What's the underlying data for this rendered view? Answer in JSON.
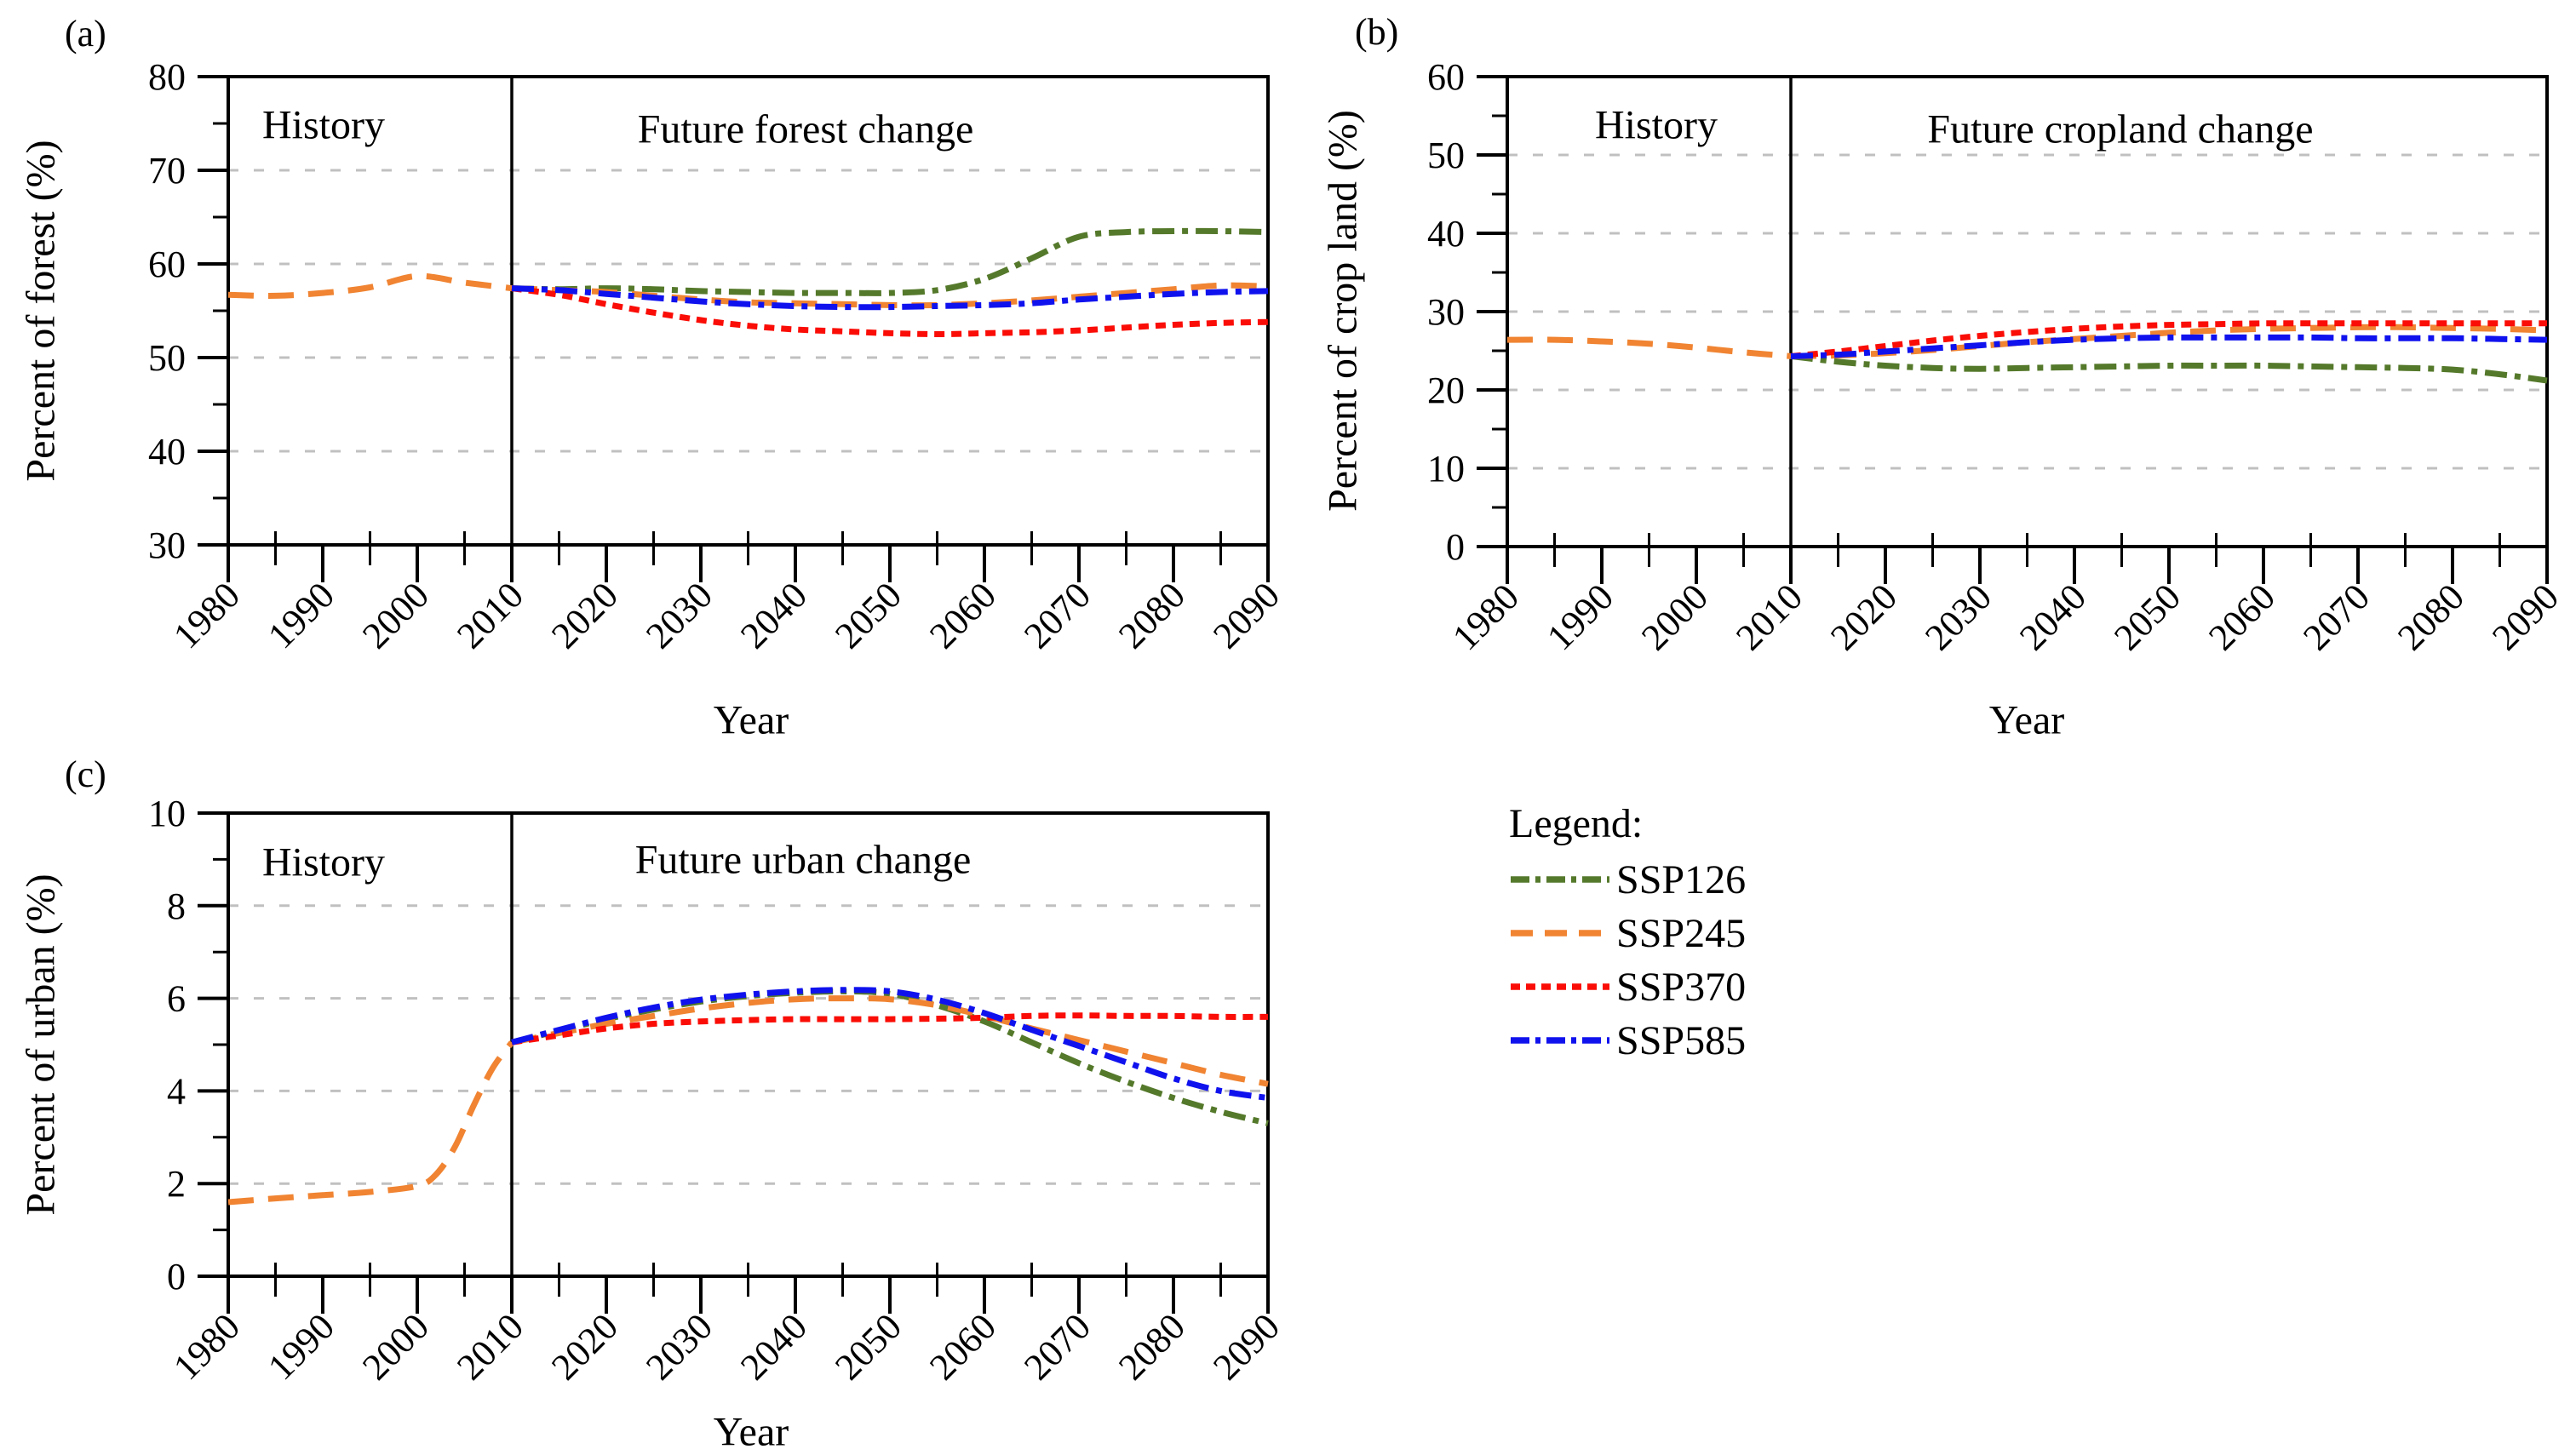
{
  "figure": {
    "background": "#ffffff",
    "description_visible_text_only": true
  },
  "colors": {
    "SSP126": "#55792B",
    "SSP245": "#F08432",
    "SSP370": "#FA0D06",
    "SSP585": "#1012EE",
    "grid": "#C0C0C0",
    "axis": "#000000",
    "text": "#000000"
  },
  "dashes": {
    "dashdot": "26 9 7 9",
    "dashed": "30 17",
    "shortdash": "12 8",
    "grid": "12 18",
    "legend_dashdot": "22 7 6 7",
    "legend_dashed": "26 14",
    "legend_shortdash": "11 7"
  },
  "legend": {
    "title": "Legend:",
    "items": [
      {
        "label": "SSP126",
        "color": "SSP126",
        "dash": "legend_dashdot"
      },
      {
        "label": "SSP245",
        "color": "SSP245",
        "dash": "legend_dashed"
      },
      {
        "label": "SSP370",
        "color": "SSP370",
        "dash": "legend_shortdash"
      },
      {
        "label": "SSP585",
        "color": "SSP585",
        "dash": "legend_dashdot"
      }
    ]
  },
  "chart_data": [
    {
      "id": "forest",
      "type": "line",
      "panel_label": "(a)",
      "history_label": "History",
      "future_label": "Future forest change",
      "xlabel": "Year",
      "ylabel": "Percent of forest (%)",
      "xlim": [
        1980,
        2090
      ],
      "ylim": [
        30,
        80
      ],
      "xticks": [
        1980,
        1990,
        2000,
        2010,
        2020,
        2030,
        2040,
        2050,
        2060,
        2070,
        2080,
        2090
      ],
      "xminor": [
        1985,
        1995,
        2005,
        2015,
        2025,
        2035,
        2045,
        2055,
        2065,
        2075,
        2085
      ],
      "yticks": [
        30,
        40,
        50,
        60,
        70,
        80
      ],
      "yminor": [
        35,
        45,
        55,
        65,
        75
      ],
      "grid_values": [
        40,
        50,
        60,
        70
      ],
      "grid": true,
      "divider_year": 2010,
      "series": [
        {
          "name": "History",
          "color": "SSP245",
          "dash": "dashed",
          "x": [
            1980,
            1985,
            1990,
            1995,
            2000,
            2005,
            2010
          ],
          "y": [
            56.7,
            56.6,
            56.9,
            57.5,
            58.7,
            58.0,
            57.4
          ]
        },
        {
          "name": "SSP126",
          "color": "SSP126",
          "dash": "dashdot",
          "x": [
            2010,
            2015,
            2020,
            2025,
            2030,
            2035,
            2040,
            2045,
            2050,
            2055,
            2060,
            2065,
            2070,
            2075,
            2080,
            2085,
            2090
          ],
          "y": [
            57.4,
            57.3,
            57.4,
            57.3,
            57.1,
            57.0,
            56.9,
            56.9,
            56.9,
            57.2,
            58.4,
            60.6,
            62.9,
            63.4,
            63.5,
            63.5,
            63.4
          ]
        },
        {
          "name": "SSP245",
          "color": "SSP245",
          "dash": "dashed",
          "x": [
            2010,
            2015,
            2020,
            2025,
            2030,
            2035,
            2040,
            2045,
            2050,
            2055,
            2060,
            2065,
            2070,
            2075,
            2080,
            2085,
            2090
          ],
          "y": [
            57.4,
            57.2,
            57.0,
            56.6,
            56.2,
            55.9,
            55.8,
            55.7,
            55.6,
            55.6,
            55.8,
            56.1,
            56.5,
            56.9,
            57.3,
            57.7,
            57.6
          ]
        },
        {
          "name": "SSP370",
          "color": "SSP370",
          "dash": "shortdash",
          "x": [
            2010,
            2015,
            2020,
            2025,
            2030,
            2035,
            2040,
            2045,
            2050,
            2055,
            2060,
            2065,
            2070,
            2075,
            2080,
            2085,
            2090
          ],
          "y": [
            57.4,
            56.7,
            55.7,
            54.8,
            54.0,
            53.4,
            53.0,
            52.8,
            52.6,
            52.5,
            52.6,
            52.7,
            52.9,
            53.2,
            53.5,
            53.7,
            53.8
          ]
        },
        {
          "name": "SSP585",
          "color": "SSP585",
          "dash": "dashdot",
          "x": [
            2010,
            2015,
            2020,
            2025,
            2030,
            2035,
            2040,
            2045,
            2050,
            2055,
            2060,
            2065,
            2070,
            2075,
            2080,
            2085,
            2090
          ],
          "y": [
            57.4,
            57.2,
            56.8,
            56.4,
            56.0,
            55.7,
            55.5,
            55.4,
            55.4,
            55.5,
            55.6,
            55.8,
            56.2,
            56.5,
            56.8,
            57.0,
            57.1
          ]
        }
      ]
    },
    {
      "id": "cropland",
      "type": "line",
      "panel_label": "(b)",
      "history_label": "History",
      "future_label": "Future cropland change",
      "xlabel": "Year",
      "ylabel": "Percent of crop land (%)",
      "xlim": [
        1980,
        2090
      ],
      "ylim": [
        0,
        60
      ],
      "xticks": [
        1980,
        1990,
        2000,
        2010,
        2020,
        2030,
        2040,
        2050,
        2060,
        2070,
        2080,
        2090
      ],
      "xminor": [
        1985,
        1995,
        2005,
        2015,
        2025,
        2035,
        2045,
        2055,
        2065,
        2075,
        2085
      ],
      "yticks": [
        0,
        10,
        20,
        30,
        40,
        50,
        60
      ],
      "yminor": [
        5,
        15,
        25,
        35,
        45,
        55
      ],
      "grid_values": [
        10,
        20,
        30,
        40,
        50
      ],
      "grid": true,
      "divider_year": 2010,
      "series": [
        {
          "name": "History",
          "color": "SSP245",
          "dash": "dashed",
          "x": [
            1980,
            1985,
            1990,
            1995,
            2000,
            2005,
            2010
          ],
          "y": [
            26.4,
            26.4,
            26.2,
            25.9,
            25.4,
            24.8,
            24.3
          ]
        },
        {
          "name": "SSP126",
          "color": "SSP126",
          "dash": "dashdot",
          "x": [
            2010,
            2015,
            2020,
            2025,
            2030,
            2035,
            2040,
            2045,
            2050,
            2055,
            2060,
            2065,
            2070,
            2075,
            2080,
            2085,
            2090
          ],
          "y": [
            24.3,
            23.6,
            23.1,
            22.8,
            22.7,
            22.8,
            22.9,
            23.0,
            23.1,
            23.1,
            23.1,
            23.0,
            22.9,
            22.8,
            22.6,
            22.0,
            21.2
          ]
        },
        {
          "name": "SSP245",
          "color": "SSP245",
          "dash": "dashed",
          "x": [
            2010,
            2015,
            2020,
            2025,
            2030,
            2035,
            2040,
            2045,
            2050,
            2055,
            2060,
            2065,
            2070,
            2075,
            2080,
            2085,
            2090
          ],
          "y": [
            24.3,
            24.4,
            24.7,
            25.1,
            25.6,
            26.1,
            26.5,
            26.9,
            27.3,
            27.6,
            27.8,
            27.9,
            28.0,
            28.0,
            27.9,
            27.8,
            27.6
          ]
        },
        {
          "name": "SSP370",
          "color": "SSP370",
          "dash": "shortdash",
          "x": [
            2010,
            2015,
            2020,
            2025,
            2030,
            2035,
            2040,
            2045,
            2050,
            2055,
            2060,
            2065,
            2070,
            2075,
            2080,
            2085,
            2090
          ],
          "y": [
            24.3,
            24.9,
            25.6,
            26.3,
            26.9,
            27.4,
            27.8,
            28.1,
            28.3,
            28.4,
            28.5,
            28.5,
            28.5,
            28.5,
            28.5,
            28.5,
            28.5
          ]
        },
        {
          "name": "SSP585",
          "color": "SSP585",
          "dash": "dashdot",
          "x": [
            2010,
            2015,
            2020,
            2025,
            2030,
            2035,
            2040,
            2045,
            2050,
            2055,
            2060,
            2065,
            2070,
            2075,
            2080,
            2085,
            2090
          ],
          "y": [
            24.3,
            24.5,
            24.9,
            25.3,
            25.7,
            26.1,
            26.4,
            26.6,
            26.7,
            26.7,
            26.7,
            26.7,
            26.6,
            26.6,
            26.6,
            26.5,
            26.4
          ]
        }
      ]
    },
    {
      "id": "urban",
      "type": "line",
      "panel_label": "(c)",
      "history_label": "History",
      "future_label": "Future urban change",
      "xlabel": "Year",
      "ylabel": "Percent of urban (%)",
      "xlim": [
        1980,
        2090
      ],
      "ylim": [
        0,
        10
      ],
      "xticks": [
        1980,
        1990,
        2000,
        2010,
        2020,
        2030,
        2040,
        2050,
        2060,
        2070,
        2080,
        2090
      ],
      "xminor": [
        1985,
        1995,
        2005,
        2015,
        2025,
        2035,
        2045,
        2055,
        2065,
        2075,
        2085
      ],
      "yticks": [
        0,
        2,
        4,
        6,
        8,
        10
      ],
      "yminor": [
        1,
        3,
        5,
        7,
        9
      ],
      "grid_values": [
        2,
        4,
        6,
        8
      ],
      "grid": true,
      "divider_year": 2010,
      "series": [
        {
          "name": "History",
          "color": "SSP245",
          "dash": "dashed",
          "x": [
            1980,
            1985,
            1990,
            1995,
            2000,
            2002,
            2004,
            2006,
            2008,
            2010
          ],
          "y": [
            1.6,
            1.68,
            1.75,
            1.82,
            1.95,
            2.2,
            2.8,
            3.7,
            4.5,
            5.05
          ]
        },
        {
          "name": "SSP126",
          "color": "SSP126",
          "dash": "dashdot",
          "x": [
            2010,
            2015,
            2020,
            2025,
            2030,
            2035,
            2040,
            2045,
            2050,
            2055,
            2060,
            2065,
            2070,
            2075,
            2080,
            2085,
            2090
          ],
          "y": [
            5.05,
            5.3,
            5.55,
            5.76,
            5.93,
            6.05,
            6.12,
            6.15,
            6.1,
            5.85,
            5.5,
            5.05,
            4.6,
            4.2,
            3.85,
            3.55,
            3.3
          ]
        },
        {
          "name": "SSP245",
          "color": "SSP245",
          "dash": "dashed",
          "x": [
            2010,
            2015,
            2020,
            2025,
            2030,
            2035,
            2040,
            2045,
            2050,
            2055,
            2060,
            2065,
            2070,
            2075,
            2080,
            2085,
            2090
          ],
          "y": [
            5.05,
            5.25,
            5.45,
            5.62,
            5.78,
            5.9,
            5.98,
            6.0,
            5.98,
            5.85,
            5.62,
            5.35,
            5.1,
            4.85,
            4.6,
            4.35,
            4.15
          ]
        },
        {
          "name": "SSP370",
          "color": "SSP370",
          "dash": "shortdash",
          "x": [
            2010,
            2015,
            2020,
            2025,
            2030,
            2035,
            2040,
            2045,
            2050,
            2055,
            2060,
            2065,
            2070,
            2075,
            2080,
            2085,
            2090
          ],
          "y": [
            5.05,
            5.2,
            5.35,
            5.45,
            5.5,
            5.53,
            5.55,
            5.55,
            5.55,
            5.56,
            5.58,
            5.62,
            5.63,
            5.62,
            5.62,
            5.6,
            5.6
          ]
        },
        {
          "name": "SSP585",
          "color": "SSP585",
          "dash": "dashdot",
          "x": [
            2010,
            2015,
            2020,
            2025,
            2030,
            2035,
            2040,
            2045,
            2050,
            2055,
            2060,
            2065,
            2070,
            2075,
            2080,
            2085,
            2090
          ],
          "y": [
            5.05,
            5.32,
            5.58,
            5.8,
            5.97,
            6.08,
            6.15,
            6.18,
            6.15,
            5.97,
            5.68,
            5.32,
            4.97,
            4.62,
            4.27,
            4.0,
            3.85
          ]
        }
      ]
    }
  ]
}
